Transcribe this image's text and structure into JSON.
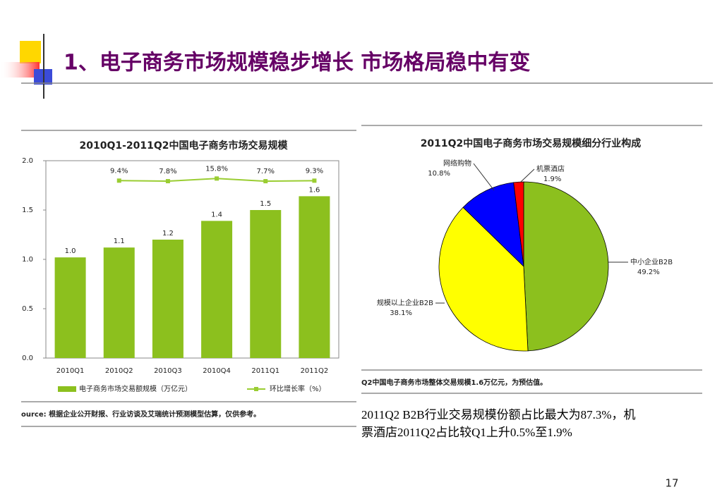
{
  "title": "1、电子商务市场规模稳步增长 市场格局稳中有变",
  "chart_data": [
    {
      "type": "bar",
      "title": "2010Q1-2011Q2中国电子商务市场交易规模",
      "categories": [
        "2010Q1",
        "2010Q2",
        "2010Q3",
        "2010Q4",
        "2011Q1",
        "2011Q2"
      ],
      "series": [
        {
          "name": "电子商务市场交易额规模（万亿元）",
          "type": "bar",
          "color": "#8cc01e",
          "values": [
            1.02,
            1.12,
            1.2,
            1.39,
            1.5,
            1.64
          ],
          "value_labels": [
            "1.0",
            "1.1",
            "1.2",
            "1.4",
            "1.5",
            "1.6"
          ]
        },
        {
          "name": "环比增长率（%）",
          "type": "line",
          "axis": "y2",
          "color": "#9acd32",
          "values": [
            null,
            9.4,
            7.8,
            15.8,
            7.7,
            9.3
          ],
          "value_labels": [
            null,
            "9.4%",
            "7.8%",
            "15.8%",
            "7.7%",
            "9.3%"
          ]
        }
      ],
      "ylim": [
        0,
        2
      ],
      "yticks": [
        {
          "value": 0,
          "label": "0.0"
        },
        0.5,
        {
          "value": 1,
          "label": "1.0"
        },
        1.5,
        {
          "value": 2,
          "label": "2.0"
        }
      ],
      "y2lim": [
        -530,
        70
      ],
      "source": "ource: 根据企业公开财报、行业访谈及艾瑞统计预测模型估算，仅供参考。"
    },
    {
      "type": "pie",
      "title": "2011Q2中国电子商务市场交易规模细分行业构成",
      "categories": [
        "中小企业B2B",
        "规模以上企业B2B",
        "网络购物",
        "机票酒店"
      ],
      "values": [
        49.2,
        38.1,
        10.8,
        1.9
      ],
      "value_labels": [
        "49.2%",
        "38.1%",
        "10.8%",
        "1.9%"
      ],
      "colors": [
        "#8cc01e",
        "#ffff00",
        "#0000ff",
        "#ff0000"
      ],
      "note": "Q2中国电子商务市场整体交易规模1.6万亿元，为预估值。"
    }
  ],
  "caption": [
    "2011Q2 B2B行业交易规模份额占比最大为87.3%，机",
    "票酒店2011Q2占比较Q1上升0.5%至1.9%"
  ],
  "page_number": "17"
}
